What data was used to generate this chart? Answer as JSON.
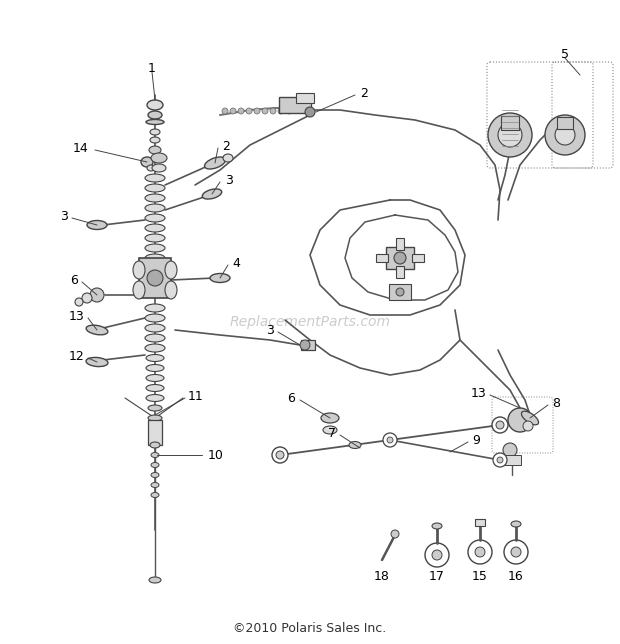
{
  "copyright_text": "©2010 Polaris Sales Inc.",
  "watermark_text": "ReplacementParts.com",
  "bg_color": "#ffffff",
  "fig_width": 6.2,
  "fig_height": 6.44,
  "dpi": 100,
  "label_fontsize": 9,
  "watermark_fontsize": 10,
  "copyright_fontsize": 9,
  "line_color": "#555555",
  "dark_color": "#333333",
  "mid_color": "#777777",
  "light_color": "#aaaaaa"
}
